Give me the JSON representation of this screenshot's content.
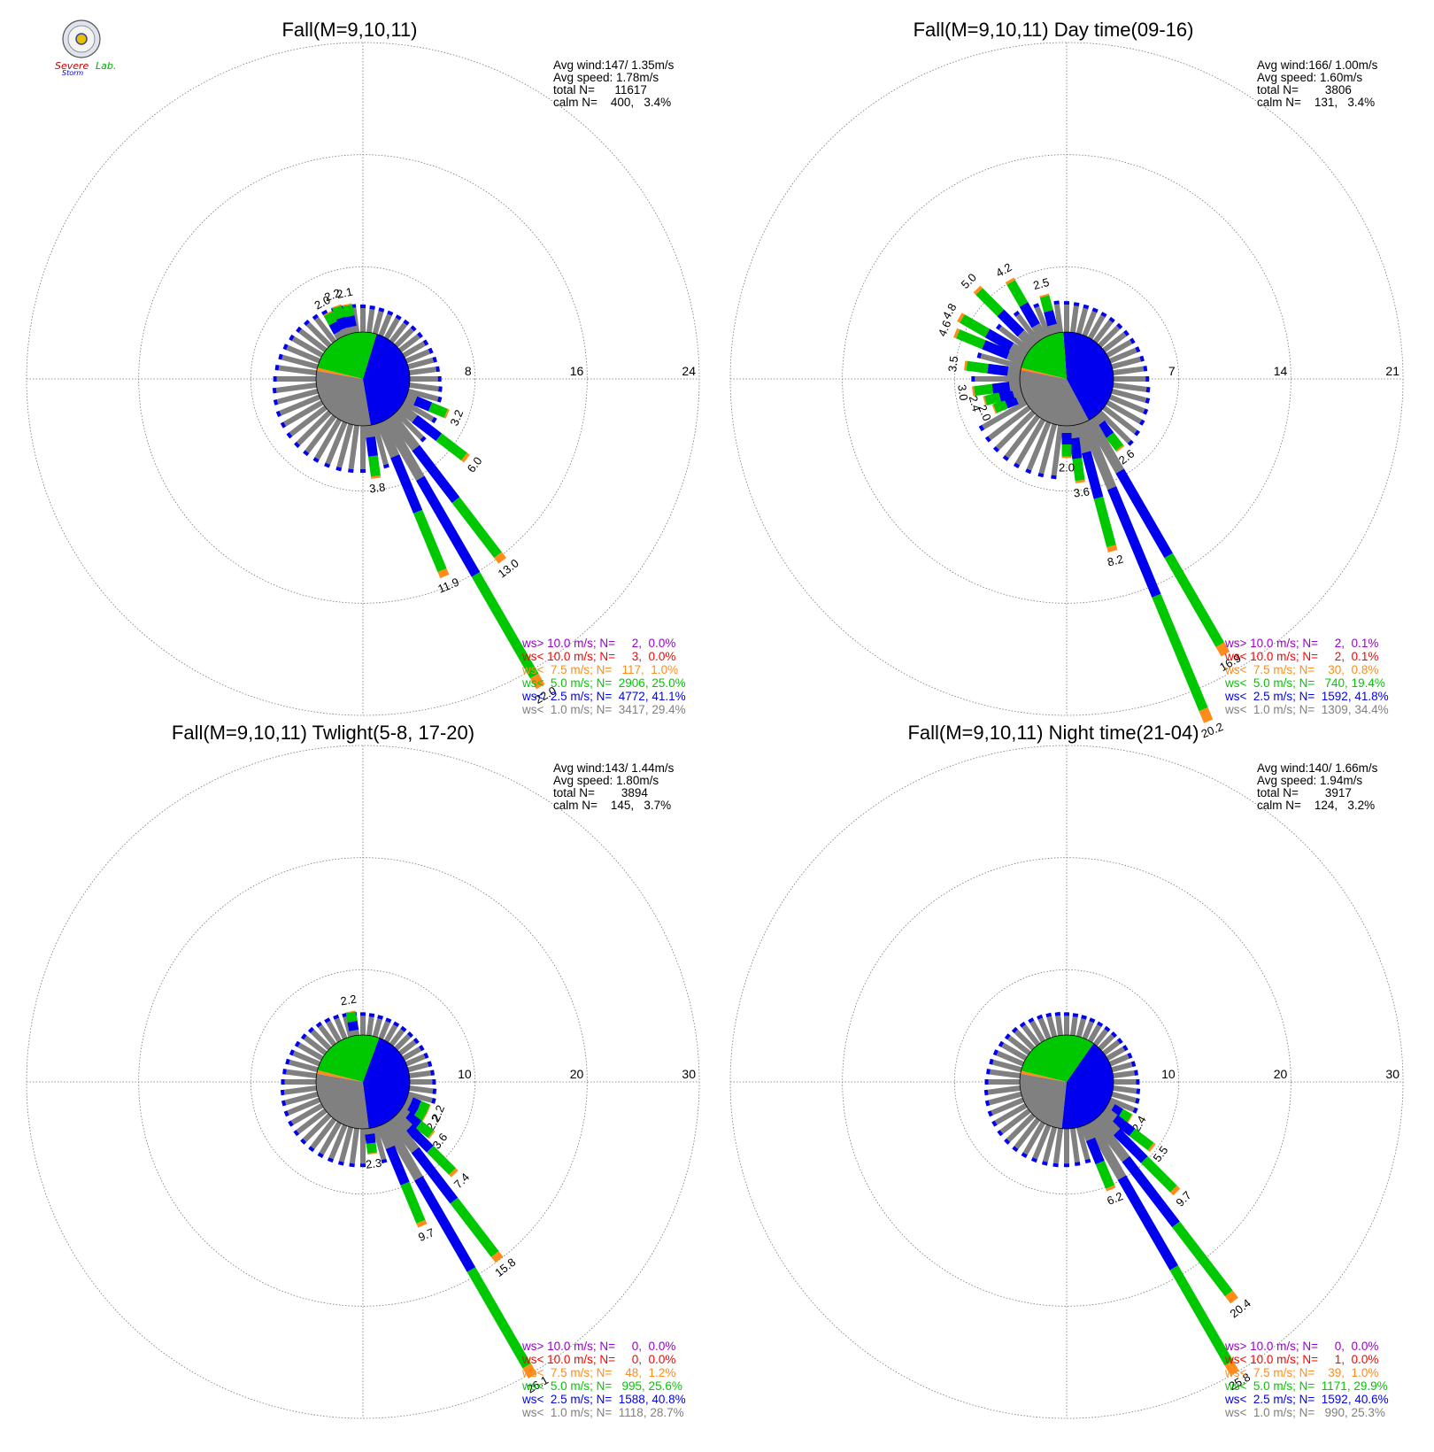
{
  "colors": {
    "calm": "#808080",
    "lt2_5": "#0000ee",
    "lt5": "#00c800",
    "lt7_5": "#ff8c1a",
    "lt10": "#ff0000",
    "gt10": "#9900cc",
    "grid": "#777777"
  },
  "logo": {
    "word1": "Severe",
    "word2": "Storm",
    "word3": "Lab."
  },
  "chart_data": [
    {
      "type": "wind-rose",
      "title": "Fall(M=9,10,11)",
      "stats": [
        "Avg wind:147/ 1.35m/s",
        "Avg speed: 1.78m/s",
        "total N=      11617",
        "calm N=    400,   3.4%"
      ],
      "ring_ticks": [
        "8",
        "16",
        "24"
      ],
      "ring_max": 24,
      "legend": [
        {
          "text": "ws> 10.0 m/s; N=     2,  0.0%",
          "color_key": "gt10"
        },
        {
          "text": "ws< 10.0 m/s; N=     3,  0.0%",
          "color_key": "lt10"
        },
        {
          "text": "ws<  7.5 m/s; N=   117,  1.0%",
          "color_key": "lt7_5"
        },
        {
          "text": "ws<  5.0 m/s; N=  2906, 25.0%",
          "color_key": "lt5"
        },
        {
          "text": "ws<  2.5 m/s; N=  4772, 41.1%",
          "color_key": "lt2_5"
        },
        {
          "text": "ws<  1.0 m/s; N=  3417, 29.4%",
          "color_key": "calm"
        }
      ],
      "pie": [
        29.4,
        41.1,
        25.0,
        1.0,
        0.0,
        0.0
      ],
      "bars": [
        {
          "dir": 112.5,
          "value": 3.2,
          "label": "3.2"
        },
        {
          "dir": 127.5,
          "value": 6.0,
          "label": "6.0"
        },
        {
          "dir": 142.5,
          "value": 13.0,
          "label": "13.0"
        },
        {
          "dir": 150,
          "value": 22.0,
          "label": "22.0"
        },
        {
          "dir": 157.5,
          "value": 11.9,
          "label": "11.9"
        },
        {
          "dir": 172.5,
          "value": 3.8,
          "label": "3.8"
        },
        {
          "dir": 332,
          "value": 2.0,
          "label": "2.0"
        },
        {
          "dir": 340,
          "value": 2.2,
          "label": "2.2"
        },
        {
          "dir": 348,
          "value": 2.1,
          "label": "2.1"
        }
      ]
    },
    {
      "type": "wind-rose",
      "title": "Fall(M=9,10,11) Day time(09-16)",
      "stats": [
        "Avg wind:166/ 1.00m/s",
        "Avg speed: 1.60m/s",
        "total N=        3806",
        "calm N=    131,   3.4%"
      ],
      "ring_ticks": [
        "7",
        "14",
        "21"
      ],
      "ring_max": 21,
      "legend": [
        {
          "text": "ws> 10.0 m/s; N=     2,  0.1%",
          "color_key": "gt10"
        },
        {
          "text": "ws< 10.0 m/s; N=     2,  0.1%",
          "color_key": "lt10"
        },
        {
          "text": "ws<  7.5 m/s; N=    30,  0.8%",
          "color_key": "lt7_5"
        },
        {
          "text": "ws<  5.0 m/s; N=   740, 19.4%",
          "color_key": "lt5"
        },
        {
          "text": "ws<  2.5 m/s; N=  1592, 41.8%",
          "color_key": "lt2_5"
        },
        {
          "text": "ws<  1.0 m/s; N=  1309, 34.4%",
          "color_key": "calm"
        }
      ],
      "pie": [
        34.4,
        41.8,
        19.4,
        0.8,
        0.1,
        0.1
      ],
      "bars": [
        {
          "dir": 142.5,
          "value": 2.6,
          "label": "2.6"
        },
        {
          "dir": 150,
          "value": 16.9,
          "label": "16.9"
        },
        {
          "dir": 157.5,
          "value": 20.2,
          "label": "20.2"
        },
        {
          "dir": 165,
          "value": 8.2,
          "label": "8.2"
        },
        {
          "dir": 172.5,
          "value": 3.6,
          "label": "3.6"
        },
        {
          "dir": 180,
          "value": 2.0,
          "label": "2.0"
        },
        {
          "dir": 247.5,
          "value": 2.0,
          "label": "2.0"
        },
        {
          "dir": 255,
          "value": 2.4,
          "label": "2.4"
        },
        {
          "dir": 262.5,
          "value": 3.0,
          "label": "3.0"
        },
        {
          "dir": 277.5,
          "value": 3.5,
          "label": "3.5"
        },
        {
          "dir": 292.5,
          "value": 4.6,
          "label": "4.6"
        },
        {
          "dir": 300,
          "value": 4.8,
          "label": "4.8"
        },
        {
          "dir": 315,
          "value": 5.0,
          "label": "5.0"
        },
        {
          "dir": 330,
          "value": 4.2,
          "label": "4.2"
        },
        {
          "dir": 345,
          "value": 2.5,
          "label": "2.5"
        }
      ]
    },
    {
      "type": "wind-rose",
      "title": "Fall(M=9,10,11) Twlight(5-8, 17-20)",
      "stats": [
        "Avg wind:143/ 1.44m/s",
        "Avg speed: 1.80m/s",
        "total N=        3894",
        "calm N=    145,   3.7%"
      ],
      "ring_ticks": [
        "10",
        "20",
        "30"
      ],
      "ring_max": 30,
      "legend": [
        {
          "text": "ws> 10.0 m/s; N=     0,  0.0%",
          "color_key": "gt10"
        },
        {
          "text": "ws< 10.0 m/s; N=     0,  0.0%",
          "color_key": "lt10"
        },
        {
          "text": "ws<  7.5 m/s; N=    48,  1.2%",
          "color_key": "lt7_5"
        },
        {
          "text": "ws<  5.0 m/s; N=   995, 25.6%",
          "color_key": "lt5"
        },
        {
          "text": "ws<  2.5 m/s; N=  1588, 40.8%",
          "color_key": "lt2_5"
        },
        {
          "text": "ws<  1.0 m/s; N=  1118, 28.7%",
          "color_key": "calm"
        }
      ],
      "pie": [
        28.7,
        40.8,
        25.6,
        1.2,
        0.0,
        0.0
      ],
      "bars": [
        {
          "dir": 112.5,
          "value": 2.2,
          "label": "2.2"
        },
        {
          "dir": 120,
          "value": 2.2,
          "label": "2.2"
        },
        {
          "dir": 127.5,
          "value": 3.6,
          "label": "3.6"
        },
        {
          "dir": 135,
          "value": 7.4,
          "label": "7.4"
        },
        {
          "dir": 142.5,
          "value": 15.8,
          "label": "15.8"
        },
        {
          "dir": 150,
          "value": 26.1,
          "label": "26.1"
        },
        {
          "dir": 157.5,
          "value": 9.7,
          "label": "9.7"
        },
        {
          "dir": 172.5,
          "value": 2.3,
          "label": "2.3"
        },
        {
          "dir": 350,
          "value": 2.2,
          "label": "2.2"
        }
      ]
    },
    {
      "type": "wind-rose",
      "title": "Fall(M=9,10,11) Night time(21-04)",
      "stats": [
        "Avg wind:140/ 1.66m/s",
        "Avg speed: 1.94m/s",
        "total N=        3917",
        "calm N=    124,   3.2%"
      ],
      "ring_ticks": [
        "10",
        "20",
        "30"
      ],
      "ring_max": 30,
      "legend": [
        {
          "text": "ws> 10.0 m/s; N=     0,  0.0%",
          "color_key": "gt10"
        },
        {
          "text": "ws< 10.0 m/s; N=     1,  0.0%",
          "color_key": "lt10"
        },
        {
          "text": "ws<  7.5 m/s; N=    39,  1.0%",
          "color_key": "lt7_5"
        },
        {
          "text": "ws<  5.0 m/s; N=  1171, 29.9%",
          "color_key": "lt5"
        },
        {
          "text": "ws<  2.5 m/s; N=  1592, 40.6%",
          "color_key": "lt2_5"
        },
        {
          "text": "ws<  1.0 m/s; N=   990, 25.3%",
          "color_key": "calm"
        }
      ],
      "pie": [
        25.3,
        40.6,
        29.9,
        1.0,
        0.0,
        0.0
      ],
      "bars": [
        {
          "dir": 120,
          "value": 2.4,
          "label": "2.4"
        },
        {
          "dir": 127.5,
          "value": 5.5,
          "label": "5.5"
        },
        {
          "dir": 135,
          "value": 9.7,
          "label": "9.7"
        },
        {
          "dir": 142.5,
          "value": 20.4,
          "label": "20.4"
        },
        {
          "dir": 150,
          "value": 25.8,
          "label": "25.8"
        },
        {
          "dir": 157.5,
          "value": 6.2,
          "label": "6.2"
        }
      ]
    }
  ]
}
